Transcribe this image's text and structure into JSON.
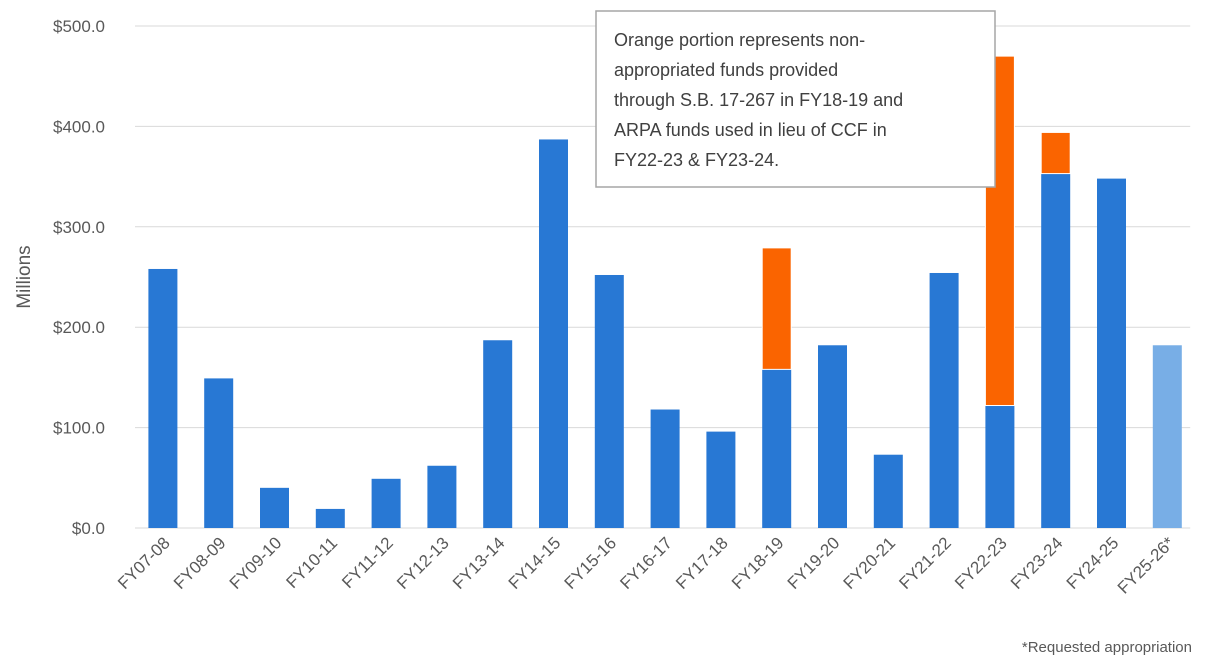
{
  "chart_data": {
    "type": "stacked_bar",
    "y_axis_label": "Millions",
    "categories": [
      "FY07-08",
      "FY08-09",
      "FY09-10",
      "FY10-11",
      "FY11-12",
      "FY12-13",
      "FY13-14",
      "FY14-15",
      "FY15-16",
      "FY16-17",
      "FY17-18",
      "FY18-19",
      "FY19-20",
      "FY20-21",
      "FY21-22",
      "FY22-23",
      "FY23-24",
      "FY24-25",
      "FY25-26*"
    ],
    "series": [
      {
        "color": "#2878d4",
        "colors": [
          "#2878d4",
          "#2878d4",
          "#2878d4",
          "#2878d4",
          "#2878d4",
          "#2878d4",
          "#2878d4",
          "#2878d4",
          "#2878d4",
          "#2878d4",
          "#2878d4",
          "#2878d4",
          "#2878d4",
          "#2878d4",
          "#2878d4",
          "#2878d4",
          "#2878d4",
          "#2878d4",
          "#78aee6"
        ],
        "values": [
          258,
          149,
          40,
          19,
          49,
          62,
          187,
          387,
          252,
          118,
          96,
          158,
          182,
          73,
          254,
          122,
          353,
          348,
          182
        ]
      },
      {
        "color": "#fa6400",
        "values": [
          null,
          null,
          null,
          null,
          null,
          null,
          null,
          null,
          null,
          null,
          null,
          121,
          null,
          null,
          null,
          348,
          41,
          null,
          null
        ]
      }
    ],
    "ylim": [
      0,
      500
    ],
    "yticks": [
      {
        "value": 0,
        "label": "$0.0"
      },
      {
        "value": 100,
        "label": "$100.0"
      },
      {
        "value": 200,
        "label": "$200.0"
      },
      {
        "value": 300,
        "label": "$300.0"
      },
      {
        "value": 400,
        "label": "$400.0"
      },
      {
        "value": 500,
        "label": "$500.0"
      }
    ],
    "grid": true,
    "annotation": [
      "Orange portion represents non-",
      "appropriated funds provided",
      "through S.B. 17-267 in FY18-19 and",
      "ARPA funds used in lieu of CCF in",
      "FY22-23 & FY23-24."
    ],
    "footnote": "*Requested appropriation"
  }
}
